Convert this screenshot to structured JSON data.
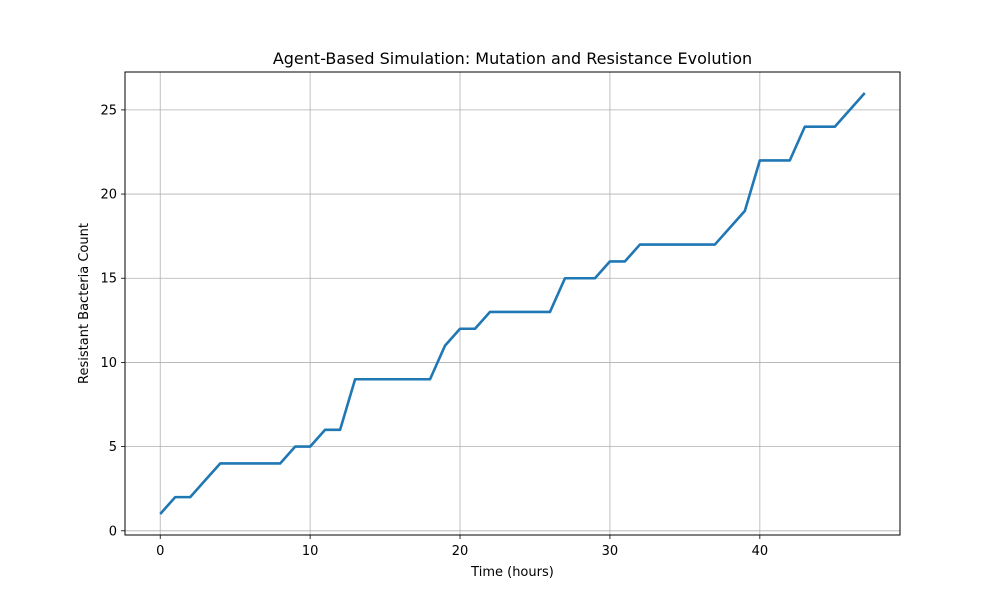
{
  "chart_data": {
    "type": "line",
    "title": "Agent-Based Simulation: Mutation and Resistance Evolution",
    "xlabel": "Time (hours)",
    "ylabel": "Resistant Bacteria Count",
    "xlim": [
      -2.35,
      49.35
    ],
    "ylim": [
      -0.25,
      27.25
    ],
    "xticks": [
      0,
      10,
      20,
      30,
      40
    ],
    "yticks": [
      0,
      5,
      10,
      15,
      20,
      25
    ],
    "grid": true,
    "series": [
      {
        "name": "",
        "color": "#1f77b4",
        "x": [
          0,
          1,
          2,
          3,
          4,
          5,
          6,
          7,
          8,
          9,
          10,
          11,
          12,
          13,
          14,
          15,
          16,
          17,
          18,
          19,
          20,
          21,
          22,
          23,
          24,
          25,
          26,
          27,
          28,
          29,
          30,
          31,
          32,
          33,
          34,
          35,
          36,
          37,
          38,
          39,
          40,
          41,
          42,
          43,
          44,
          45,
          46,
          47
        ],
        "y": [
          1,
          2,
          2,
          3,
          4,
          4,
          4,
          4,
          4,
          5,
          5,
          6,
          6,
          9,
          9,
          9,
          9,
          9,
          9,
          11,
          12,
          12,
          13,
          13,
          13,
          13,
          13,
          15,
          15,
          15,
          16,
          16,
          17,
          17,
          17,
          17,
          17,
          17,
          18,
          19,
          22,
          22,
          22,
          24,
          24,
          24,
          25,
          26
        ]
      }
    ]
  }
}
